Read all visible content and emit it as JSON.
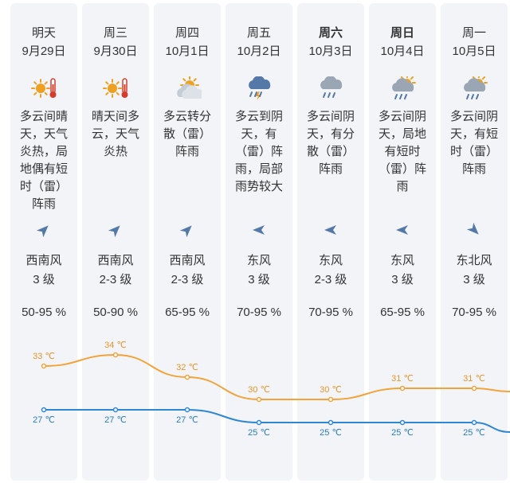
{
  "days": [
    {
      "day": "明天",
      "date": "9月29日",
      "icon": "sunny-hot-icon",
      "desc": "多云间晴天，天气炎热，局地偶有短时（雷）阵雨",
      "wind_dir": "西南风",
      "wind_level": "3 级",
      "wind_heading": "southwest",
      "humidity": "50-95 %",
      "high": "33 ℃",
      "low": "27 ℃",
      "weekend": false
    },
    {
      "day": "周三",
      "date": "9月30日",
      "icon": "sunny-hot-icon",
      "desc": "晴天间多云，天气炎热",
      "wind_dir": "西南风",
      "wind_level": "2-3 级",
      "wind_heading": "southwest",
      "humidity": "50-90 %",
      "high": "34 ℃",
      "low": "27 ℃",
      "weekend": false
    },
    {
      "day": "周四",
      "date": "10月1日",
      "icon": "partly-cloudy-icon",
      "desc": "多云转分散（雷）阵雨",
      "wind_dir": "西南风",
      "wind_level": "2-3 级",
      "wind_heading": "southwest",
      "humidity": "65-95 %",
      "high": "32 ℃",
      "low": "27 ℃",
      "weekend": false
    },
    {
      "day": "周五",
      "date": "10月2日",
      "icon": "thunderstorm-icon",
      "desc": "多云到阴天，有（雷）阵雨，局部雨势较大",
      "wind_dir": "东风",
      "wind_level": "3 级",
      "wind_heading": "east",
      "humidity": "70-95 %",
      "high": "30 ℃",
      "low": "25 ℃",
      "weekend": false
    },
    {
      "day": "周六",
      "date": "10月3日",
      "icon": "cloud-rain-icon",
      "desc": "多云间阴天，有分散（雷）阵雨",
      "wind_dir": "东风",
      "wind_level": "2-3 级",
      "wind_heading": "east",
      "humidity": "70-95 %",
      "high": "30 ℃",
      "low": "25 ℃",
      "weekend": true
    },
    {
      "day": "周日",
      "date": "10月4日",
      "icon": "sun-cloud-rain-icon",
      "desc": "多云间阴天，局地有短时（雷）阵雨",
      "wind_dir": "东风",
      "wind_level": "3 级",
      "wind_heading": "east",
      "humidity": "65-95 %",
      "high": "31 ℃",
      "low": "25 ℃",
      "weekend": true
    },
    {
      "day": "周一",
      "date": "10月5日",
      "icon": "sun-cloud-rain-icon",
      "desc": "多云间阴天，有短时（雷）阵雨",
      "wind_dir": "东北风",
      "wind_level": "3 级",
      "wind_heading": "northeast",
      "humidity": "70-95 %",
      "high": "31 ℃",
      "low": "25 ℃",
      "weekend": false
    }
  ],
  "colors": {
    "high_line": "#f2a33a",
    "high_text": "#e8952a",
    "low_line": "#2f86d2",
    "low_text": "#2a7cc4",
    "icon_blue": "#5478a8",
    "sun_orange": "#f0a020",
    "thermo_red": "#d63c2c",
    "cloud_gray": "#9aa6b4"
  }
}
